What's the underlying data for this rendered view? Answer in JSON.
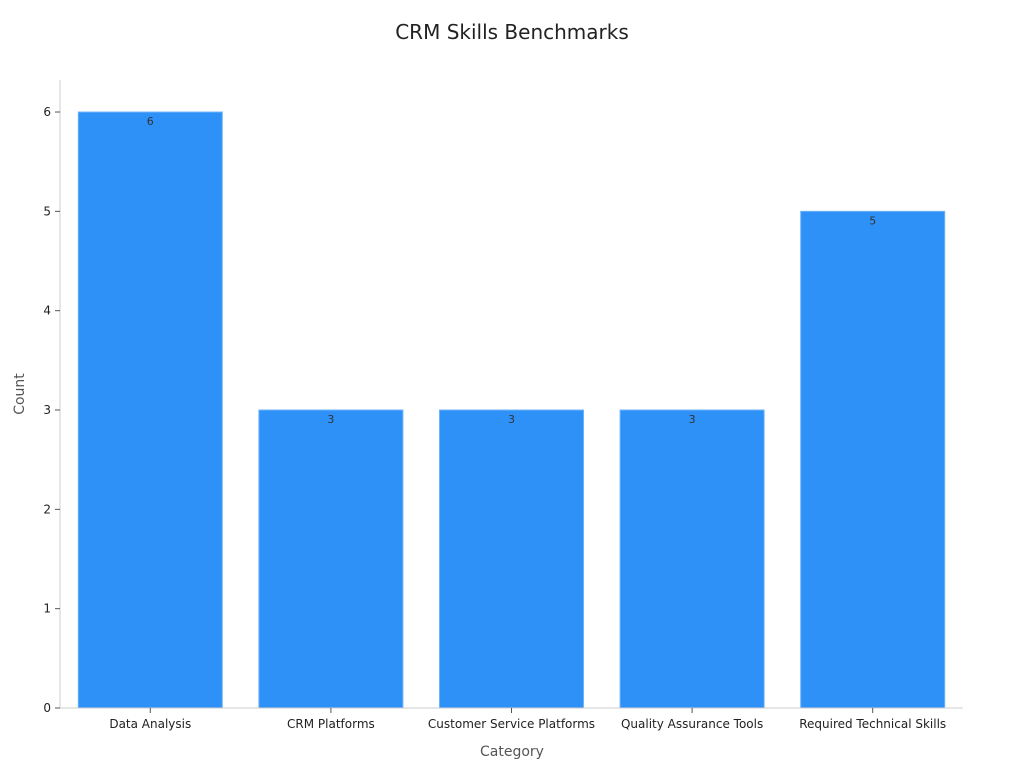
{
  "chart_data": {
    "type": "bar",
    "title": "CRM Skills Benchmarks",
    "xlabel": "Category",
    "ylabel": "Count",
    "categories": [
      "Data Analysis",
      "CRM Platforms",
      "Customer Service Platforms",
      "Quality Assurance Tools",
      "Required Technical Skills"
    ],
    "values": [
      6,
      3,
      3,
      3,
      5
    ],
    "ylim": [
      0,
      6.3
    ],
    "yticks": [
      0,
      1,
      2,
      3,
      4,
      5,
      6
    ],
    "bar_color": "#2e91f7",
    "grid": false,
    "legend": false,
    "data_labels": true
  }
}
